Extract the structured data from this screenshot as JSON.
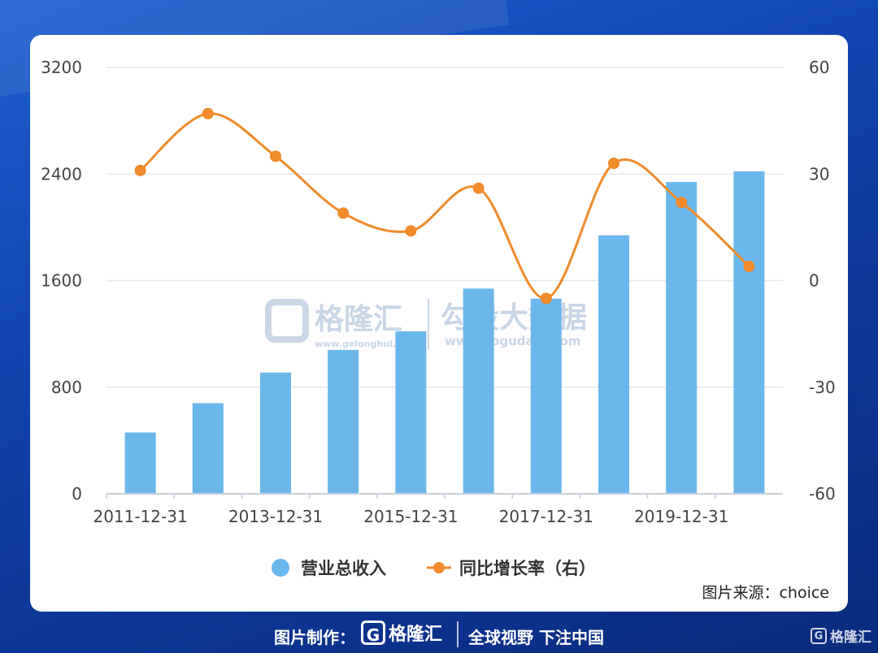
{
  "chart_data": {
    "type": "bar",
    "categories": [
      "2011-12-31",
      "2012-12-31",
      "2013-12-31",
      "2014-12-31",
      "2015-12-31",
      "2016-12-31",
      "2017-12-31",
      "2018-12-31",
      "2019-12-31",
      "2020-12-31"
    ],
    "x_tick_labels": [
      "2011-12-31",
      "2013-12-31",
      "2015-12-31",
      "2017-12-31",
      "2019-12-31"
    ],
    "series": [
      {
        "name": "营业总收入",
        "type": "bar",
        "axis": "left",
        "color": "#6bb7ec",
        "values": [
          460,
          680,
          910,
          1080,
          1220,
          1540,
          1465,
          1940,
          2340,
          2420
        ]
      },
      {
        "name": "同比增长率（右）",
        "type": "line",
        "axis": "right",
        "color": "#f08a2a",
        "values": [
          31,
          47,
          35,
          19,
          14,
          26,
          -5,
          33,
          22,
          4
        ]
      }
    ],
    "y_left": {
      "range": [
        0,
        3200
      ],
      "ticks": [
        0,
        800,
        1600,
        2400,
        3200
      ]
    },
    "y_right": {
      "range": [
        -60,
        60
      ],
      "ticks": [
        -60,
        -30,
        0,
        30,
        60
      ]
    },
    "grid": true,
    "legend_position": "bottom"
  },
  "source_note": "图片来源：choice",
  "watermark": {
    "brand": "格隆汇",
    "brand_url": "www.gelonghui.com",
    "partner": "勾股大数据",
    "partner_url": "www.gogudata.com"
  },
  "footer": {
    "made_by": "图片制作：",
    "logo_text": "格隆汇",
    "slogan": "全球视野 下注中国",
    "corner_logo": "格隆汇"
  }
}
